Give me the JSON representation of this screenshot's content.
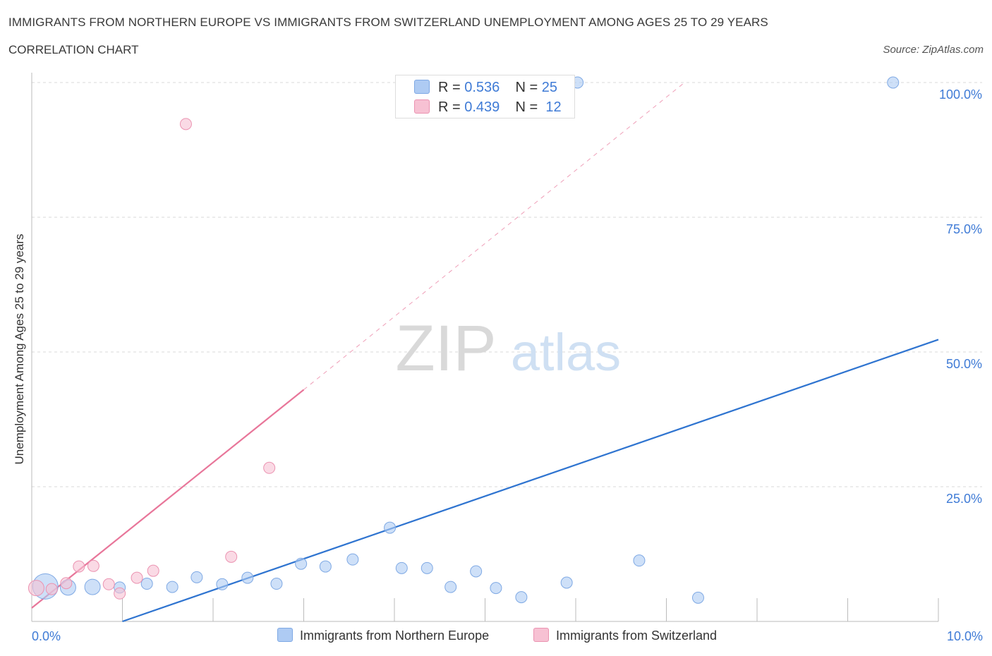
{
  "title": "IMMIGRANTS FROM NORTHERN EUROPE VS IMMIGRANTS FROM SWITZERLAND UNEMPLOYMENT AMONG AGES 25 TO 29 YEARS",
  "subtitle": "CORRELATION CHART",
  "source": "Source: ZipAtlas.com",
  "watermark": {
    "zip": "ZIP",
    "atlas": "atlas"
  },
  "legend": {
    "r_label": "R =",
    "n_label": "N =",
    "rows": [
      {
        "name": "Immigrants from Northern Europe",
        "r": "0.536",
        "n": "25",
        "color": "#aecbf3"
      },
      {
        "name": "Immigrants from Switzerland",
        "r": "0.439",
        "n": "12",
        "color": "#f7c1d3"
      }
    ]
  },
  "colors": {
    "blue_line": "#2f74d0",
    "pink_line": "#e8769a",
    "blue_point": "#aecbf3",
    "pink_point": "#f7c1d3",
    "tick_label": "#3f7bd6"
  },
  "chart_data": {
    "type": "scatter",
    "title": "IMMIGRANTS FROM NORTHERN EUROPE VS IMMIGRANTS FROM SWITZERLAND UNEMPLOYMENT AMONG AGES 25 TO 29 YEARS",
    "xlabel": "",
    "ylabel": "Unemployment Among Ages 25 to 29 years",
    "xlim": [
      0,
      10
    ],
    "ylim": [
      0,
      100
    ],
    "x_tick_labels": [
      "0.0%",
      "10.0%"
    ],
    "y_ticks": [
      25,
      50,
      75,
      100
    ],
    "y_tick_labels": [
      "25.0%",
      "50.0%",
      "75.0%",
      "100.0%"
    ],
    "grid": true,
    "series": [
      {
        "name": "Immigrants from Northern Europe",
        "points": [
          {
            "x": 0.15,
            "y": 6.5,
            "size": "large"
          },
          {
            "x": 0.4,
            "y": 6.3,
            "size": "medium"
          },
          {
            "x": 0.67,
            "y": 6.4,
            "size": "medium"
          },
          {
            "x": 0.97,
            "y": 6.3
          },
          {
            "x": 1.27,
            "y": 7.0
          },
          {
            "x": 1.55,
            "y": 6.4
          },
          {
            "x": 1.82,
            "y": 8.2
          },
          {
            "x": 2.1,
            "y": 6.9
          },
          {
            "x": 2.38,
            "y": 8.1
          },
          {
            "x": 2.7,
            "y": 7.0
          },
          {
            "x": 2.97,
            "y": 10.7
          },
          {
            "x": 3.24,
            "y": 10.2
          },
          {
            "x": 3.54,
            "y": 11.5
          },
          {
            "x": 3.95,
            "y": 17.4
          },
          {
            "x": 4.08,
            "y": 9.9
          },
          {
            "x": 4.36,
            "y": 9.9
          },
          {
            "x": 4.62,
            "y": 6.4
          },
          {
            "x": 4.9,
            "y": 9.3
          },
          {
            "x": 5.12,
            "y": 6.2
          },
          {
            "x": 5.4,
            "y": 4.5
          },
          {
            "x": 5.9,
            "y": 7.2
          },
          {
            "x": 6.02,
            "y": 100.0
          },
          {
            "x": 6.7,
            "y": 11.3
          },
          {
            "x": 7.35,
            "y": 4.4
          },
          {
            "x": 9.5,
            "y": 100.0
          }
        ]
      },
      {
        "name": "Immigrants from Switzerland",
        "points": [
          {
            "x": 0.05,
            "y": 6.2,
            "size": "medium"
          },
          {
            "x": 0.22,
            "y": 6.0
          },
          {
            "x": 0.38,
            "y": 7.1
          },
          {
            "x": 0.52,
            "y": 10.2
          },
          {
            "x": 0.68,
            "y": 10.3
          },
          {
            "x": 0.85,
            "y": 6.9
          },
          {
            "x": 0.97,
            "y": 5.2
          },
          {
            "x": 1.16,
            "y": 8.1
          },
          {
            "x": 1.34,
            "y": 9.4
          },
          {
            "x": 1.7,
            "y": 92.3
          },
          {
            "x": 2.2,
            "y": 12.0
          },
          {
            "x": 2.62,
            "y": 28.5
          }
        ]
      }
    ],
    "trendlines": [
      {
        "series": "Immigrants from Northern Europe",
        "x": [
          1.0,
          10.0
        ],
        "y": [
          0.0,
          52.3
        ],
        "style": "solid"
      },
      {
        "series": "Immigrants from Switzerland",
        "x": [
          0.0,
          3.0
        ],
        "y": [
          2.5,
          43.0
        ],
        "style": "solid"
      },
      {
        "series": "Immigrants from Switzerland",
        "x": [
          3.0,
          7.2
        ],
        "y": [
          43.0,
          100.0
        ],
        "style": "dashed"
      }
    ]
  }
}
